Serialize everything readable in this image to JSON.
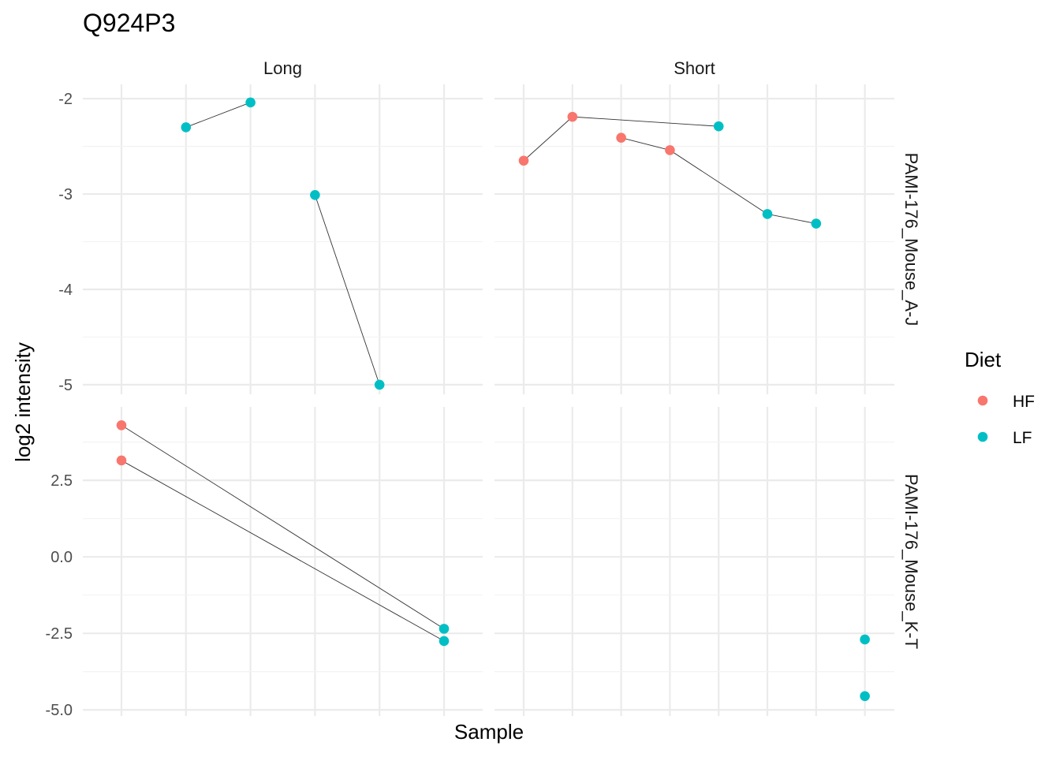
{
  "chart_data": {
    "type": "scatter",
    "title": "Q924P3",
    "xlabel": "Sample",
    "ylabel": "log2 intensity",
    "grid": true,
    "legend": {
      "title": "Diet",
      "placement": "right",
      "entries": [
        {
          "name": "HF",
          "color": "#F8766D"
        },
        {
          "name": "LF",
          "color": "#00BFC4"
        }
      ]
    },
    "column_facets": [
      "Long",
      "Short"
    ],
    "row_facets": [
      "PAMI-176_Mouse_A-J",
      "PAMI-176_Mouse_K-T"
    ],
    "panels": [
      {
        "row": "PAMI-176_Mouse_A-J",
        "col": "Long",
        "n_samples": 6,
        "ylim": [
          -5.1,
          -1.85
        ],
        "points": [
          {
            "sample": 2,
            "y": -2.3,
            "diet": "LF"
          },
          {
            "sample": 3,
            "y": -2.04,
            "diet": "LF"
          },
          {
            "sample": 4,
            "y": -3.01,
            "diet": "LF"
          },
          {
            "sample": 5,
            "y": -5.0,
            "diet": "LF"
          }
        ],
        "lines": [
          [
            0,
            1
          ],
          [
            2,
            3
          ]
        ]
      },
      {
        "row": "PAMI-176_Mouse_A-J",
        "col": "Short",
        "n_samples": 8,
        "ylim": [
          -5.1,
          -1.85
        ],
        "points": [
          {
            "sample": 1,
            "y": -2.65,
            "diet": "HF"
          },
          {
            "sample": 2,
            "y": -2.19,
            "diet": "HF"
          },
          {
            "sample": 3,
            "y": -2.41,
            "diet": "HF"
          },
          {
            "sample": 4,
            "y": -2.54,
            "diet": "HF"
          },
          {
            "sample": 5,
            "y": -2.29,
            "diet": "LF"
          },
          {
            "sample": 6,
            "y": -3.21,
            "diet": "LF"
          },
          {
            "sample": 7,
            "y": -3.31,
            "diet": "LF"
          }
        ],
        "lines": [
          [
            0,
            1
          ],
          [
            1,
            4
          ],
          [
            2,
            3
          ],
          [
            3,
            5
          ],
          [
            5,
            6
          ]
        ]
      },
      {
        "row": "PAMI-176_Mouse_K-T",
        "col": "Long",
        "n_samples": 6,
        "ylim": [
          -5.2,
          4.9
        ],
        "points": [
          {
            "sample": 1,
            "y": 4.3,
            "diet": "HF"
          },
          {
            "sample": 1,
            "y": 3.15,
            "diet": "HF"
          },
          {
            "sample": 6,
            "y": -2.35,
            "diet": "LF"
          },
          {
            "sample": 6,
            "y": -2.75,
            "diet": "LF"
          }
        ],
        "lines": [
          [
            0,
            2
          ],
          [
            1,
            3
          ]
        ]
      },
      {
        "row": "PAMI-176_Mouse_K-T",
        "col": "Short",
        "n_samples": 8,
        "ylim": [
          -5.2,
          4.9
        ],
        "points": [
          {
            "sample": 8,
            "y": -2.7,
            "diet": "LF"
          },
          {
            "sample": 8,
            "y": -4.55,
            "diet": "LF"
          }
        ],
        "lines": []
      }
    ],
    "y_ticks": {
      "PAMI-176_Mouse_A-J": [
        "-2",
        "-3",
        "-4",
        "-5"
      ],
      "PAMI-176_Mouse_K-T": [
        "2.5",
        "0.0",
        "-2.5",
        "-5.0"
      ]
    },
    "y_tick_values": {
      "PAMI-176_Mouse_A-J": [
        -2,
        -3,
        -4,
        -5
      ],
      "PAMI-176_Mouse_K-T": [
        2.5,
        0.0,
        -2.5,
        -5.0
      ]
    }
  }
}
